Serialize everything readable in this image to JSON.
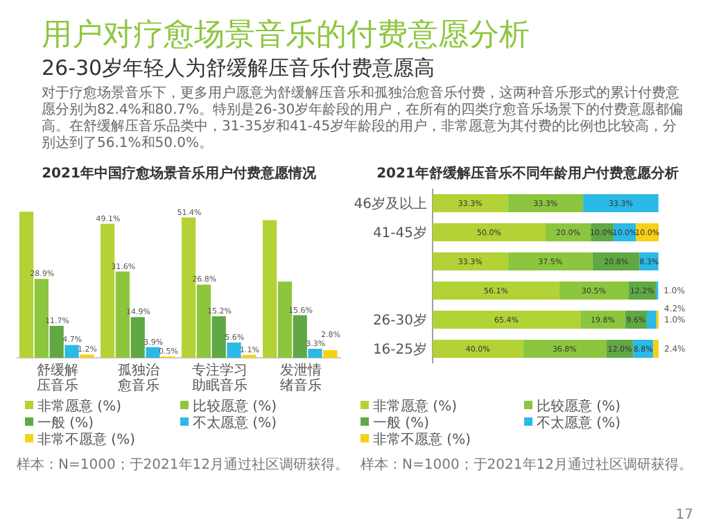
{
  "chart_data": [
    {
      "type": "other",
      "title": "用户对疗愈场景音乐的付费意愿分析",
      "subtitle": "26-30岁年轻人为舒缓解压音乐付费意愿高",
      "annotations": [
        "对于疗愈场景音乐下，更多用户愿意为舒缓解压音乐和孤独治愈音乐付费，这两种音乐形式的累计付费意愿分别为82.4%和80.7%。特别是26-30岁年龄段的用户，在所有的四类疗愈音乐场景下的付费意愿都偏高。在舒缓解压音乐品类中，31-35岁和41-45岁年龄段的用户，非常愿意为其付费的比例也比较高，分别达到了56.1%和50.0%。",
        "17"
      ]
    },
    {
      "type": "bar",
      "title": "2021年中国疗愈场景音乐用户付费意愿情况",
      "categories": [
        "舒缓解压音乐",
        "孤独治愈音乐",
        "专注学习助眠音乐",
        "发泄情绪音乐"
      ],
      "legend": "bottom",
      "annotations": [
        "样本：N=1000；于2021年12月通过社区调研获得。"
      ],
      "series": [
        {
          "name": "非常愿意 (%)",
          "color": "#b3d235",
          "values": [
            53.5,
            49.1,
            51.4,
            50.4
          ],
          "value_labels": [
            null,
            "49.1%",
            "51.4%",
            null
          ]
        },
        {
          "name": "比较愿意 (%)",
          "color": "#8cc63e",
          "values": [
            28.9,
            31.6,
            26.8,
            27.9
          ],
          "value_labels": [
            "28.9%",
            "31.6%",
            "26.8%",
            null
          ]
        },
        {
          "name": "一般 (%)",
          "color": "#5fa844",
          "values": [
            11.7,
            14.9,
            15.2,
            15.6
          ],
          "value_labels": [
            "11.7%",
            "14.9%",
            "15.2%",
            "15.6%"
          ]
        },
        {
          "name": "不太愿意 (%)",
          "color": "#2bb9e6",
          "values": [
            4.7,
            3.9,
            5.6,
            3.3
          ],
          "value_labels": [
            "4.7%",
            "3.9%",
            "5.6%",
            "3.3%"
          ]
        },
        {
          "name": "非常不愿意 (%)",
          "color": "#f7d117",
          "values": [
            1.2,
            0.5,
            1.1,
            2.8
          ],
          "value_labels": [
            "1.2%",
            "0.5%",
            "1.1%",
            "2.8%"
          ]
        }
      ]
    },
    {
      "type": "bar",
      "orientation": "horizontal",
      "stacked": true,
      "title": "2021年舒缓解压音乐不同年龄用户付费意愿分析",
      "categories": [
        "46岁及以上",
        "41-45岁",
        null,
        null,
        "26-30岁",
        "16-25岁"
      ],
      "legend": "bottom",
      "annotations": [
        "样本：N=1000；于2021年12月通过社区调研获得。"
      ],
      "series": [
        {
          "name": "非常愿意 (%)",
          "color": "#b3d235",
          "values": [
            33.3,
            50.0,
            33.3,
            56.1,
            65.4,
            40.0
          ],
          "value_labels": [
            "33.3%",
            "50.0%",
            "33.3%",
            "56.1%",
            "65.4%",
            "40.0%"
          ]
        },
        {
          "name": "比较愿意 (%)",
          "color": "#8cc63e",
          "values": [
            33.3,
            20.0,
            37.5,
            30.5,
            19.8,
            36.8
          ],
          "value_labels": [
            "33.3%",
            "20.0%",
            "37.5%",
            "30.5%",
            "19.8%",
            "36.8%"
          ]
        },
        {
          "name": "一般 (%)",
          "color": "#5fa844",
          "values": [
            null,
            10.0,
            20.8,
            12.2,
            9.6,
            12.0
          ],
          "value_labels": [
            null,
            "10.0%",
            "20.8%",
            "12.2%",
            "9.6%",
            "12.0%"
          ]
        },
        {
          "name": "不太愿意 (%)",
          "color": "#2bb9e6",
          "values": [
            33.3,
            10.0,
            8.3,
            1.0,
            4.2,
            8.8
          ],
          "value_labels": [
            "33.3%",
            "10.0%",
            "8.3%",
            "1.0%",
            "4.2%",
            "8.8%"
          ]
        },
        {
          "name": "非常不愿意 (%)",
          "color": "#f7d117",
          "values": [
            null,
            10.0,
            null,
            null,
            1.0,
            2.4
          ],
          "value_labels": [
            null,
            "10.0%",
            null,
            null,
            "1.0%",
            "2.4%"
          ]
        }
      ]
    }
  ]
}
